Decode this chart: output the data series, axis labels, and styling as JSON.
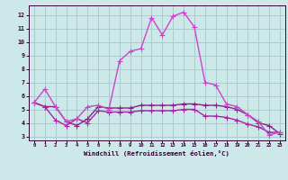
{
  "background_color": "#cce8e8",
  "grid_color": "#aacccc",
  "line1_color": "#cc44cc",
  "line2_color": "#882288",
  "line3_color": "#aa22aa",
  "xlabel": "Windchill (Refroidissement éolien,°C)",
  "xlim": [
    -0.5,
    23.5
  ],
  "ylim": [
    2.7,
    12.7
  ],
  "yticks": [
    3,
    4,
    5,
    6,
    7,
    8,
    9,
    10,
    11,
    12
  ],
  "xticks": [
    0,
    1,
    2,
    3,
    4,
    5,
    6,
    7,
    8,
    9,
    10,
    11,
    12,
    13,
    14,
    15,
    16,
    17,
    18,
    19,
    20,
    21,
    22,
    23
  ],
  "series1_x": [
    0,
    1,
    2,
    3,
    4,
    5,
    6,
    7,
    8,
    9,
    10,
    11,
    12,
    13,
    14,
    15,
    16,
    17,
    18,
    19,
    20,
    21,
    22,
    23
  ],
  "series1_y": [
    5.5,
    6.5,
    5.2,
    4.1,
    4.3,
    5.2,
    5.3,
    5.0,
    8.6,
    9.3,
    9.5,
    11.8,
    10.5,
    11.9,
    12.2,
    11.1,
    7.0,
    6.8,
    5.4,
    5.2,
    4.6,
    4.1,
    3.1,
    3.3
  ],
  "series2_x": [
    0,
    1,
    2,
    3,
    4,
    5,
    6,
    7,
    8,
    9,
    10,
    11,
    12,
    13,
    14,
    15,
    16,
    17,
    18,
    19,
    20,
    21,
    22,
    23
  ],
  "series2_y": [
    5.5,
    5.2,
    5.2,
    4.1,
    3.8,
    4.3,
    5.2,
    5.1,
    5.1,
    5.1,
    5.3,
    5.3,
    5.3,
    5.3,
    5.4,
    5.4,
    5.3,
    5.3,
    5.2,
    5.0,
    4.6,
    4.0,
    3.8,
    3.2
  ],
  "series3_x": [
    0,
    1,
    2,
    3,
    4,
    5,
    6,
    7,
    8,
    9,
    10,
    11,
    12,
    13,
    14,
    15,
    16,
    17,
    18,
    19,
    20,
    21,
    22,
    23
  ],
  "series3_y": [
    5.5,
    5.2,
    4.2,
    3.8,
    4.3,
    4.0,
    4.9,
    4.8,
    4.8,
    4.8,
    4.9,
    4.9,
    4.9,
    4.9,
    5.0,
    5.0,
    4.5,
    4.5,
    4.4,
    4.2,
    3.9,
    3.7,
    3.3,
    3.3
  ],
  "marker": "+",
  "marker_size": 4,
  "linewidth": 1.0
}
